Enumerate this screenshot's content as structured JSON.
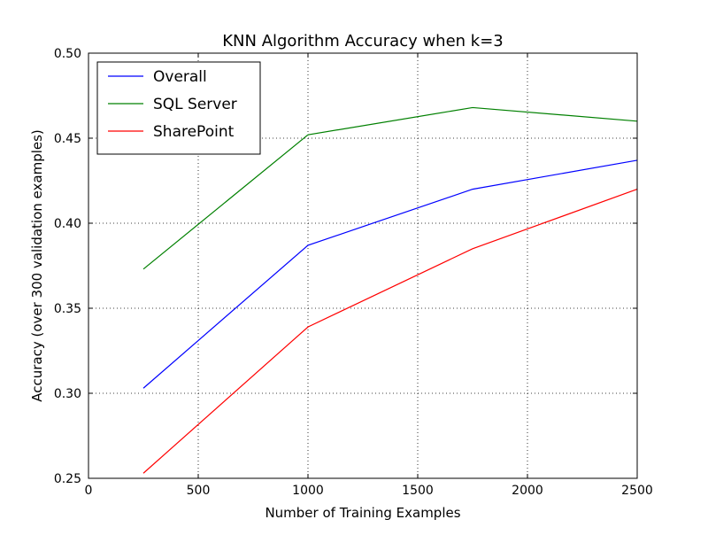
{
  "chart_data": {
    "type": "line",
    "title": "KNN Algorithm Accuracy when k=3",
    "xlabel": "Number of Training Examples",
    "ylabel": "Accuracy (over 300 validation examples)",
    "xlim": [
      0,
      2500
    ],
    "ylim": [
      0.25,
      0.5
    ],
    "xticks": [
      0,
      500,
      1000,
      1500,
      2000,
      2500
    ],
    "xtick_labels": [
      "0",
      "500",
      "1000",
      "1500",
      "2000",
      "2500"
    ],
    "yticks": [
      0.25,
      0.3,
      0.35,
      0.4,
      0.45,
      0.5
    ],
    "ytick_labels": [
      "0.25",
      "0.30",
      "0.35",
      "0.40",
      "0.45",
      "0.50"
    ],
    "grid": true,
    "legend_position": "top-left",
    "x": [
      250,
      1000,
      1750,
      2500
    ],
    "series": [
      {
        "name": "Overall",
        "color": "#0000ff",
        "values": [
          0.303,
          0.387,
          0.42,
          0.437
        ]
      },
      {
        "name": "SQL Server",
        "color": "#008000",
        "values": [
          0.373,
          0.452,
          0.468,
          0.46
        ]
      },
      {
        "name": "SharePoint",
        "color": "#ff0000",
        "values": [
          0.253,
          0.339,
          0.385,
          0.42
        ]
      }
    ]
  }
}
